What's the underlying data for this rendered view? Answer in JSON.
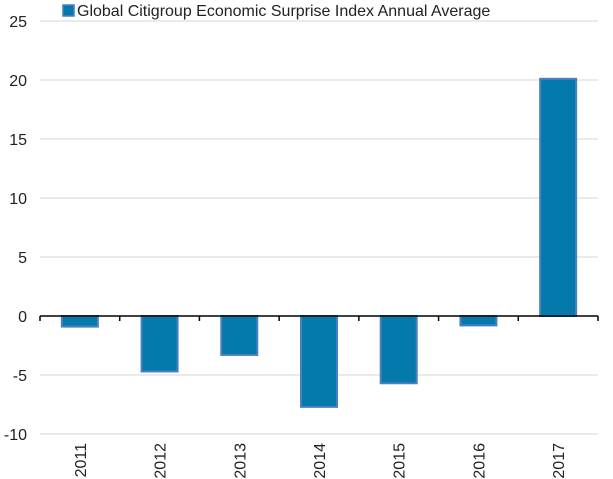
{
  "chart_data": {
    "type": "bar",
    "title": "",
    "xlabel": "",
    "ylabel": "",
    "categories": [
      "2011",
      "2012",
      "2013",
      "2014",
      "2015",
      "2016",
      "2017"
    ],
    "series": [
      {
        "name": "Global Citigroup Economic Surprise Index Annual Average",
        "values": [
          -0.9,
          -4.7,
          -3.3,
          -7.7,
          -5.7,
          -0.8,
          20.1
        ],
        "color": "#0479ac",
        "border_color": "#4a7fc1"
      }
    ],
    "ylim": [
      -10,
      25
    ],
    "yticks": [
      25,
      20,
      15,
      10,
      5,
      0,
      -5,
      -10
    ],
    "ytick_labels": [
      "25",
      "20",
      "15",
      "10",
      "5",
      "0",
      "-5",
      "-10"
    ],
    "grid": true,
    "legend_position": "top",
    "colors": {
      "gridline": "#e4e4e4",
      "zero_axis": "#000000",
      "text": "#222222"
    }
  }
}
